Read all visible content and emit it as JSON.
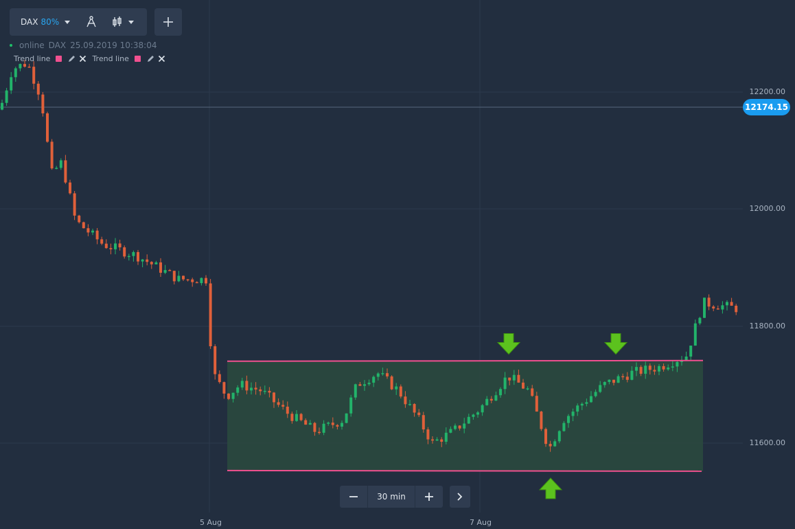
{
  "toolbar": {
    "asset": "DAX",
    "asset_percent": "80%",
    "draw_tool_icon": "compass-icon",
    "chart_type_icon": "candlestick-icon",
    "add_icon": "plus-icon"
  },
  "status": {
    "state": "online",
    "asset": "DAX",
    "datetime": "25.09.2019 10:38:04"
  },
  "indicators": [
    {
      "label": "Trend line",
      "color": "#f0508f"
    },
    {
      "label": "Trend line",
      "color": "#f0508f"
    }
  ],
  "price_axis": {
    "labels": [
      "12200.00",
      "12000.00",
      "11800.00",
      "11600.00"
    ],
    "current_price": "12174.15"
  },
  "time_axis": {
    "labels": [
      "5 Aug",
      "7 Aug"
    ]
  },
  "timeframe": {
    "value": "30 min",
    "minus_icon": "minus-icon",
    "plus_icon": "plus-icon",
    "next_icon": "chevron-right-icon"
  },
  "colors": {
    "background": "#222e3f",
    "bullish": "#22b36a",
    "bearish": "#e0603a",
    "trend_line": "#f0508f",
    "channel_fill": "#2a4a3e",
    "current_price": "#1a9cf0",
    "arrow": "#5cc21e"
  },
  "chart_data": {
    "type": "candlestick",
    "symbol": "DAX",
    "interval": "30 min",
    "y_range": [
      11520,
      12280
    ],
    "current_price": 12174.15,
    "channel": {
      "upper": 11740,
      "lower": 11552
    },
    "markers": [
      {
        "type": "arrow-down",
        "price": 11752
      },
      {
        "type": "arrow-down",
        "price": 11752
      },
      {
        "type": "arrow-up",
        "price": 11552
      }
    ]
  }
}
